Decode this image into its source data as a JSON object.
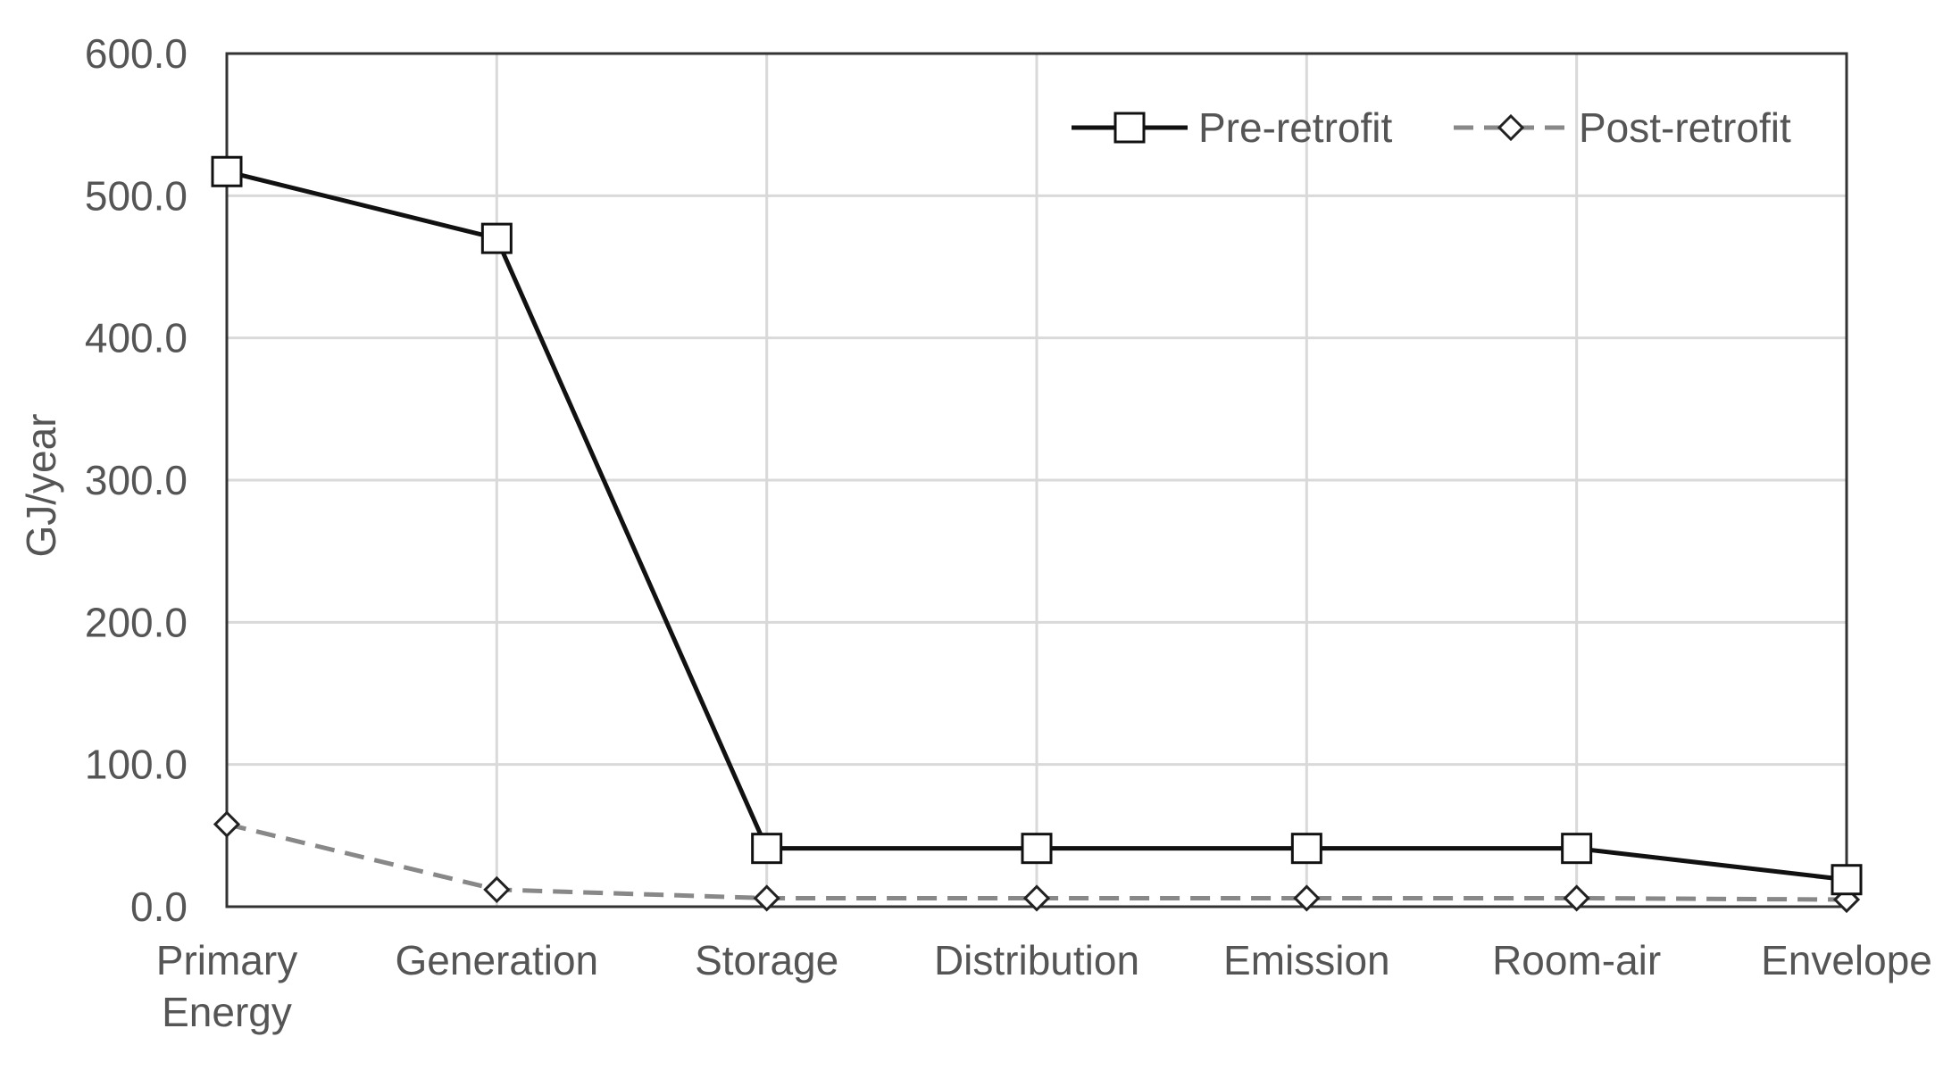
{
  "chart_data": {
    "type": "line",
    "title": "",
    "xlabel": "",
    "ylabel": "GJ/year",
    "ylim": [
      0,
      600
    ],
    "yticks": [
      "0.0",
      "100.0",
      "200.0",
      "300.0",
      "400.0",
      "500.0",
      "600.0"
    ],
    "grid": true,
    "legend_position": "top-right",
    "categories": [
      [
        "Primary",
        "Energy"
      ],
      [
        "Generation"
      ],
      [
        "Storage"
      ],
      [
        "Distribution"
      ],
      [
        "Emission"
      ],
      [
        "Room-air"
      ],
      [
        "Envelope"
      ]
    ],
    "series": [
      {
        "name": "Pre-retrofit",
        "marker": "square",
        "line_style": "solid",
        "color": "#111111",
        "values": [
          517,
          470,
          41,
          41,
          41,
          41,
          19
        ]
      },
      {
        "name": "Post-retrofit",
        "marker": "diamond",
        "line_style": "dashed",
        "color": "#888888",
        "values": [
          58,
          12,
          6,
          6,
          6,
          6,
          5
        ]
      }
    ]
  }
}
